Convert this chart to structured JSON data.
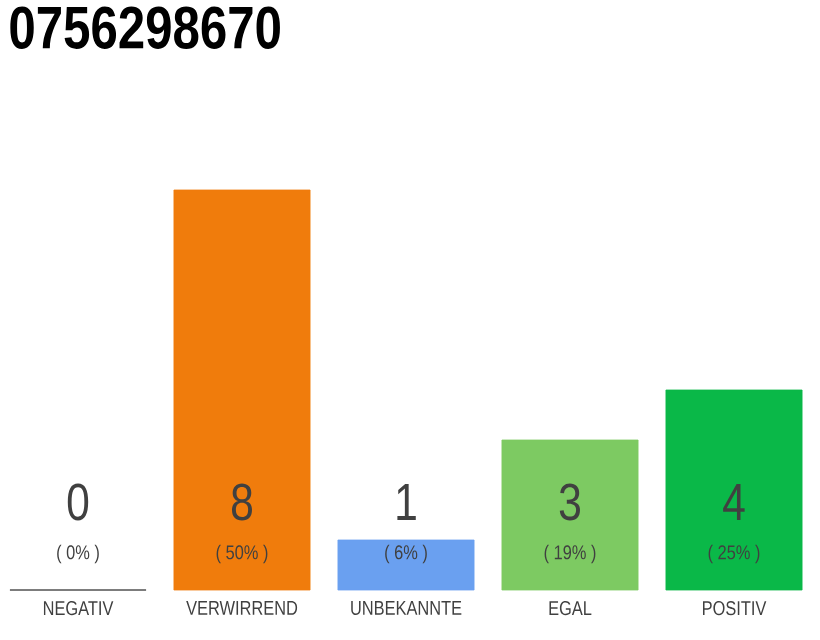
{
  "chart_data": {
    "type": "bar",
    "title": "0756298670",
    "categories": [
      "NEGATIV",
      "VERWIRREND",
      "UNBEKANNTE",
      "EGAL",
      "POSITIV"
    ],
    "values": [
      0,
      8,
      1,
      3,
      4
    ],
    "colors": [
      "#333333",
      "#f07c0c",
      "#6aa0f0",
      "#7dca62",
      "#0ab848"
    ],
    "data_labels": true,
    "annotations": [
      "( 0% )",
      "( 50% )",
      "( 6% )",
      "( 19% )",
      "( 25% )"
    ]
  }
}
